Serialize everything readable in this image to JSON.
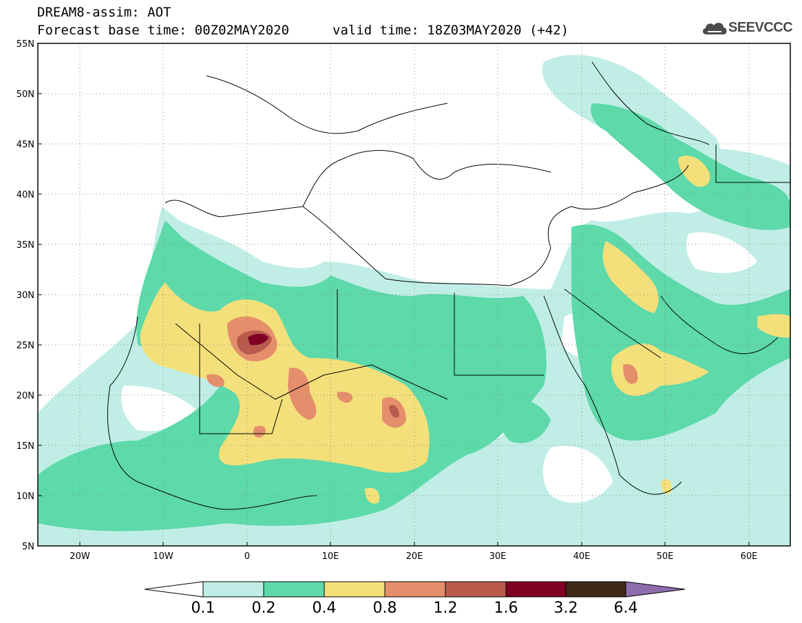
{
  "title": {
    "line1": "DREAM8-assim: AOT",
    "base_time": "Forecast base time: 00Z02MAY2020",
    "valid_time": "valid time: 18Z03MAY2020 (+42)"
  },
  "logo": {
    "text": "SEEVCCC",
    "icon": "cloud-icon"
  },
  "map": {
    "extent": {
      "lon": [
        -25,
        65
      ],
      "lat": [
        5,
        55
      ]
    },
    "lat_ticks": [
      "55N",
      "50N",
      "45N",
      "40N",
      "35N",
      "30N",
      "25N",
      "20N",
      "15N",
      "10N",
      "5N"
    ],
    "lon_ticks": [
      "20W",
      "10W",
      "0",
      "10E",
      "20E",
      "30E",
      "40E",
      "50E",
      "60E"
    ]
  },
  "colorbar": {
    "levels": [
      "0.1",
      "0.2",
      "0.4",
      "0.8",
      "1.2",
      "1.6",
      "3.2",
      "6.4"
    ],
    "colors": [
      "#c0eee6",
      "#5dd9aa",
      "#f4e07a",
      "#e58e6c",
      "#b95a4d",
      "#800024",
      "#3e2818",
      "#8e6dae"
    ],
    "under_color": "#ffffff"
  }
}
